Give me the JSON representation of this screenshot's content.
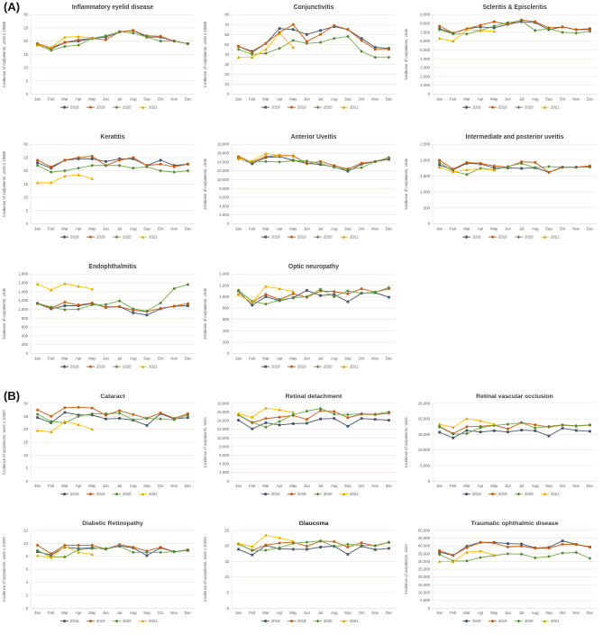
{
  "figure": {
    "panel_a_label": "(A)",
    "panel_b_label": "(B)",
    "y_axis_label": "Incidence of outpatients, visits",
    "months": [
      "Jan",
      "Feb",
      "Mar",
      "Apr",
      "May",
      "Jun",
      "Jul",
      "Aug",
      "Sep",
      "Oct",
      "Nov",
      "Dec"
    ],
    "legend_years": [
      "2018",
      "2019",
      "2020",
      "2021"
    ],
    "series_meta": [
      {
        "name": "2018",
        "color": "#44546A",
        "marker": "square"
      },
      {
        "name": "2019",
        "color": "#C55A11",
        "marker": "circle"
      },
      {
        "name": "2020",
        "color": "#70AD47",
        "marker_color": "#538135",
        "marker": "diamond"
      },
      {
        "name": "2021",
        "color": "#FFC000",
        "marker_color": "#D6A200",
        "marker": "triangle"
      }
    ],
    "grid_color": "#f2e2d9",
    "axis_color": "#d9d9d9",
    "tick_color": "#595959",
    "title_color": "#404040"
  },
  "chart_data": [
    {
      "panel": "A",
      "type": "line",
      "title": "Inflammatory eyelid disease",
      "title_bold": false,
      "unit": "x 10000",
      "ylim": [
        0,
        30
      ],
      "ystep": 5,
      "series": [
        {
          "name": "2018",
          "values": [
            19,
            17,
            19.5,
            20,
            21,
            21.5,
            23.5,
            24,
            21.5,
            21.5,
            20,
            19
          ]
        },
        {
          "name": "2019",
          "values": [
            19,
            17.5,
            19.5,
            20.5,
            21,
            20.5,
            23.5,
            24,
            22,
            21.8,
            20,
            19
          ]
        },
        {
          "name": "2020",
          "values": [
            18.5,
            16.5,
            18,
            18.5,
            21,
            22,
            23.5,
            23,
            21.5,
            20,
            20,
            19
          ]
        },
        {
          "name": "2021",
          "values": [
            18.5,
            17.5,
            21.5,
            21.7,
            21.3
          ]
        }
      ]
    },
    {
      "panel": "A",
      "type": "line",
      "title": "Conjunctivitis",
      "title_bold": false,
      "unit": "x 10000",
      "ylim": [
        0,
        80
      ],
      "ystep": 10,
      "series": [
        {
          "name": "2018",
          "values": [
            48,
            43,
            51,
            66,
            65,
            60,
            64,
            68,
            65,
            56,
            47,
            46
          ]
        },
        {
          "name": "2019",
          "values": [
            48,
            42,
            51,
            62,
            70,
            53,
            60,
            69,
            65,
            54,
            45,
            45
          ]
        },
        {
          "name": "2020",
          "values": [
            45,
            40,
            41,
            46,
            54,
            51,
            52,
            56,
            58,
            43,
            37,
            37
          ]
        },
        {
          "name": "2021",
          "values": [
            37,
            37,
            45,
            61,
            47
          ]
        }
      ]
    },
    {
      "panel": "A",
      "type": "line",
      "title": "Scleritis & Episcleritis",
      "title_bold": false,
      "unit": "",
      "ylim": [
        0,
        9000
      ],
      "ystep": 1000,
      "series": [
        {
          "name": "2018",
          "values": [
            7400,
            6900,
            7400,
            7600,
            7500,
            7900,
            8200,
            8100,
            7300,
            7600,
            7300,
            7400
          ]
        },
        {
          "name": "2019",
          "values": [
            7700,
            6900,
            7400,
            7800,
            8200,
            7900,
            8400,
            8200,
            7500,
            7600,
            7300,
            7300
          ]
        },
        {
          "name": "2020",
          "values": [
            7300,
            6800,
            6800,
            7200,
            7700,
            8100,
            8300,
            7200,
            7400,
            7000,
            6900,
            7100
          ]
        },
        {
          "name": "2021",
          "values": [
            6300,
            6000,
            7300,
            7200,
            7100
          ]
        }
      ]
    },
    {
      "panel": "A",
      "type": "line",
      "title": "Keratitis",
      "title_bold": false,
      "unit": "x 10000",
      "ylim": [
        0,
        30
      ],
      "ystep": 5,
      "series": [
        {
          "name": "2018",
          "values": [
            23,
            21,
            24,
            24.5,
            24.5,
            23.5,
            24.5,
            24.5,
            22,
            24,
            22,
            22.5
          ]
        },
        {
          "name": "2019",
          "values": [
            24,
            21.5,
            24,
            25,
            25.5,
            22,
            24,
            25,
            22,
            22.5,
            21.5,
            22.5
          ]
        },
        {
          "name": "2020",
          "values": [
            22,
            19.5,
            20,
            21,
            22,
            22,
            22,
            21,
            21.5,
            20,
            19.5,
            20
          ]
        },
        {
          "name": "2021",
          "values": [
            15.5,
            15.5,
            18,
            18.5,
            17
          ]
        }
      ]
    },
    {
      "panel": "A",
      "type": "line",
      "title": "Anterior Uveitis",
      "title_bold": false,
      "unit": "",
      "ylim": [
        0,
        18000
      ],
      "ystep": 2000,
      "series": [
        {
          "name": "2018",
          "values": [
            15000,
            13600,
            15000,
            15200,
            14400,
            13700,
            13400,
            12900,
            11900,
            13500,
            14100,
            14600
          ]
        },
        {
          "name": "2019",
          "values": [
            15200,
            14000,
            15200,
            15500,
            15400,
            13600,
            14100,
            13200,
            12400,
            13700,
            14100,
            14900
          ]
        },
        {
          "name": "2020",
          "values": [
            14700,
            14100,
            14100,
            14000,
            14300,
            14200,
            13600,
            12800,
            12300,
            12700,
            14100,
            15000
          ]
        },
        {
          "name": "2021",
          "values": [
            14800,
            14200,
            15900,
            15400,
            15300
          ]
        }
      ]
    },
    {
      "panel": "A",
      "type": "line",
      "title": "Intermediate and posterior uveitis",
      "title_bold": false,
      "unit": "",
      "ylim": [
        0,
        2500
      ],
      "ystep": 500,
      "series": [
        {
          "name": "2018",
          "values": [
            1850,
            1700,
            1900,
            1880,
            1760,
            1760,
            1740,
            1760,
            1620,
            1780,
            1780,
            1800
          ]
        },
        {
          "name": "2019",
          "values": [
            2000,
            1720,
            1930,
            1900,
            1820,
            1780,
            1950,
            1930,
            1620,
            1780,
            1780,
            1820
          ]
        },
        {
          "name": "2020",
          "values": [
            1930,
            1650,
            1550,
            1750,
            1700,
            1800,
            1900,
            1760,
            1800,
            1780,
            1780,
            1780
          ]
        },
        {
          "name": "2021",
          "values": [
            1780,
            1630,
            1700,
            1730,
            1690
          ]
        }
      ]
    },
    {
      "panel": "A",
      "type": "line",
      "title": "Endophthalmitis",
      "title_bold": false,
      "unit": "",
      "ylim": [
        0,
        1800
      ],
      "ystep": 200,
      "series": [
        {
          "name": "2018",
          "values": [
            1130,
            1010,
            1080,
            1080,
            1130,
            1050,
            1060,
            920,
            870,
            1010,
            1070,
            1080
          ]
        },
        {
          "name": "2019",
          "values": [
            1130,
            1030,
            1160,
            1100,
            1140,
            1040,
            1060,
            980,
            950,
            1020,
            1070,
            1130
          ]
        },
        {
          "name": "2020",
          "values": [
            1140,
            1050,
            990,
            1000,
            1100,
            1110,
            1190,
            1010,
            960,
            1140,
            1470,
            1560
          ]
        },
        {
          "name": "2021",
          "values": [
            1570,
            1440,
            1580,
            1520,
            1460
          ]
        }
      ]
    },
    {
      "panel": "A",
      "type": "line",
      "title": "Optic neuropathy",
      "title_bold": false,
      "unit": "",
      "ylim": [
        0,
        1400
      ],
      "ystep": 200,
      "series": [
        {
          "name": "2018",
          "values": [
            1100,
            850,
            1000,
            930,
            980,
            1110,
            1020,
            1040,
            910,
            1060,
            1070,
            990
          ]
        },
        {
          "name": "2019",
          "values": [
            1040,
            900,
            1040,
            950,
            1050,
            990,
            1100,
            1090,
            1050,
            1140,
            1080,
            1140
          ]
        },
        {
          "name": "2020",
          "values": [
            1110,
            920,
            870,
            940,
            980,
            1000,
            1130,
            1000,
            1100,
            1060,
            1080,
            1160
          ]
        },
        {
          "name": "2021",
          "values": [
            1040,
            900,
            1180,
            1140,
            1090
          ]
        }
      ]
    },
    {
      "panel": "B",
      "type": "line",
      "title": "Cataract",
      "title_bold": false,
      "unit": "x 10000",
      "ylim": [
        0,
        30
      ],
      "ystep": 5,
      "series": [
        {
          "name": "2018",
          "values": [
            24.5,
            22.5,
            26.5,
            25.5,
            25.5,
            24,
            24.2,
            23.5,
            21.5,
            26,
            24,
            24.5
          ]
        },
        {
          "name": "2019",
          "values": [
            27.5,
            25,
            28.3,
            28.5,
            28.2,
            25.5,
            27.2,
            25.7,
            24.2,
            26.3,
            24.2,
            26
          ]
        },
        {
          "name": "2020",
          "values": [
            25.8,
            23,
            22.5,
            25,
            26,
            26,
            26.2,
            23.7,
            24.2,
            24,
            23.7,
            25.5
          ]
        },
        {
          "name": "2021",
          "values": [
            19.5,
            19,
            23,
            21.8,
            20
          ]
        }
      ]
    },
    {
      "panel": "B",
      "type": "line",
      "title": "Retinal detachment",
      "title_bold": false,
      "unit": "",
      "ylim": [
        0,
        18000
      ],
      "ystep": 2000,
      "series": [
        {
          "name": "2018",
          "values": [
            14100,
            12100,
            13500,
            13000,
            13300,
            13400,
            14400,
            14500,
            12700,
            14500,
            14300,
            14100
          ]
        },
        {
          "name": "2019",
          "values": [
            15300,
            13500,
            14500,
            14800,
            15200,
            14300,
            16300,
            16100,
            14700,
            15500,
            15400,
            15700
          ]
        },
        {
          "name": "2020",
          "values": [
            15400,
            13600,
            12500,
            13800,
            15400,
            16200,
            16800,
            15500,
            15400,
            15600,
            15500,
            16000
          ]
        },
        {
          "name": "2021",
          "values": [
            15600,
            14800,
            16900,
            16500,
            15900
          ]
        }
      ]
    },
    {
      "panel": "B",
      "type": "line",
      "title": "Retinal vascular occlusion",
      "title_bold": false,
      "unit": "",
      "ylim": [
        0,
        25000
      ],
      "ystep": 5000,
      "series": [
        {
          "name": "2018",
          "values": [
            15700,
            13900,
            16300,
            15800,
            16200,
            15800,
            16400,
            16200,
            14500,
            17000,
            16300,
            16000
          ]
        },
        {
          "name": "2019",
          "values": [
            17600,
            15300,
            17500,
            17600,
            18000,
            16800,
            18800,
            18100,
            17400,
            18000,
            17700,
            18000
          ]
        },
        {
          "name": "2020",
          "values": [
            17400,
            15100,
            15300,
            17200,
            17900,
            18300,
            18800,
            17100,
            17600,
            18100,
            17800,
            18100
          ]
        },
        {
          "name": "2021",
          "values": [
            18300,
            17300,
            20100,
            19400,
            18300
          ]
        }
      ]
    },
    {
      "panel": "B",
      "type": "line",
      "title": "Diabetic Retinopathy",
      "title_bold": false,
      "unit": "x 10000",
      "ylim": [
        0,
        12
      ],
      "ystep": 2,
      "series": [
        {
          "name": "2018",
          "values": [
            8.7,
            8.2,
            9.4,
            9.2,
            9.3,
            9.1,
            9.6,
            9.3,
            8.1,
            9.3,
            8.7,
            8.9
          ]
        },
        {
          "name": "2019",
          "values": [
            9.7,
            8.4,
            9.7,
            9.7,
            9.7,
            9.1,
            9.8,
            9.4,
            8.8,
            9.4,
            8.7,
            9.0
          ]
        },
        {
          "name": "2020",
          "values": [
            8.9,
            7.9,
            7.9,
            9.0,
            9.2,
            9.2,
            9.5,
            8.6,
            8.6,
            8.6,
            8.7,
            8.9
          ]
        },
        {
          "name": "2021",
          "values": [
            8.1,
            7.8,
            9.5,
            8.6,
            8.3
          ]
        }
      ]
    },
    {
      "panel": "B",
      "type": "line",
      "title": "Glaucoma",
      "title_bold": true,
      "unit": "x 10000",
      "ylim": [
        0,
        25
      ],
      "ystep": 5,
      "series": [
        {
          "name": "2018",
          "values": [
            18.9,
            17.1,
            20.1,
            19.1,
            18.9,
            18.9,
            19.6,
            19.9,
            17.3,
            19.9,
            18.8,
            19.2
          ]
        },
        {
          "name": "2019",
          "values": [
            20.6,
            18.6,
            20.3,
            20.9,
            21.2,
            19.9,
            21.5,
            21.4,
            19.6,
            21.0,
            20.0,
            21.1
          ]
        },
        {
          "name": "2020",
          "values": [
            20.6,
            18.5,
            18.6,
            19.4,
            20.8,
            21.2,
            21.6,
            19.8,
            20.5,
            20.2,
            20.1,
            21.2
          ]
        },
        {
          "name": "2021",
          "values": [
            20.7,
            19.8,
            23.4,
            22.6,
            21.5
          ]
        }
      ]
    },
    {
      "panel": "B",
      "type": "line",
      "title": "Traumatic ophthalmic disease",
      "title_bold": false,
      "unit": "",
      "ylim": [
        0,
        50000
      ],
      "ystep": 5000,
      "series": [
        {
          "name": "2018",
          "values": [
            36000,
            33800,
            39800,
            42300,
            42200,
            41500,
            41200,
            38700,
            39000,
            43200,
            41000,
            39300
          ]
        },
        {
          "name": "2019",
          "values": [
            37000,
            34000,
            38800,
            42200,
            41800,
            39300,
            39800,
            38500,
            38500,
            41000,
            40900,
            39200
          ]
        },
        {
          "name": "2020",
          "values": [
            34500,
            30300,
            30300,
            32500,
            33800,
            34900,
            34700,
            32300,
            33200,
            35400,
            35800,
            32000
          ]
        },
        {
          "name": "2021",
          "values": [
            30000,
            29800,
            35900,
            36700,
            34000
          ]
        }
      ]
    }
  ]
}
